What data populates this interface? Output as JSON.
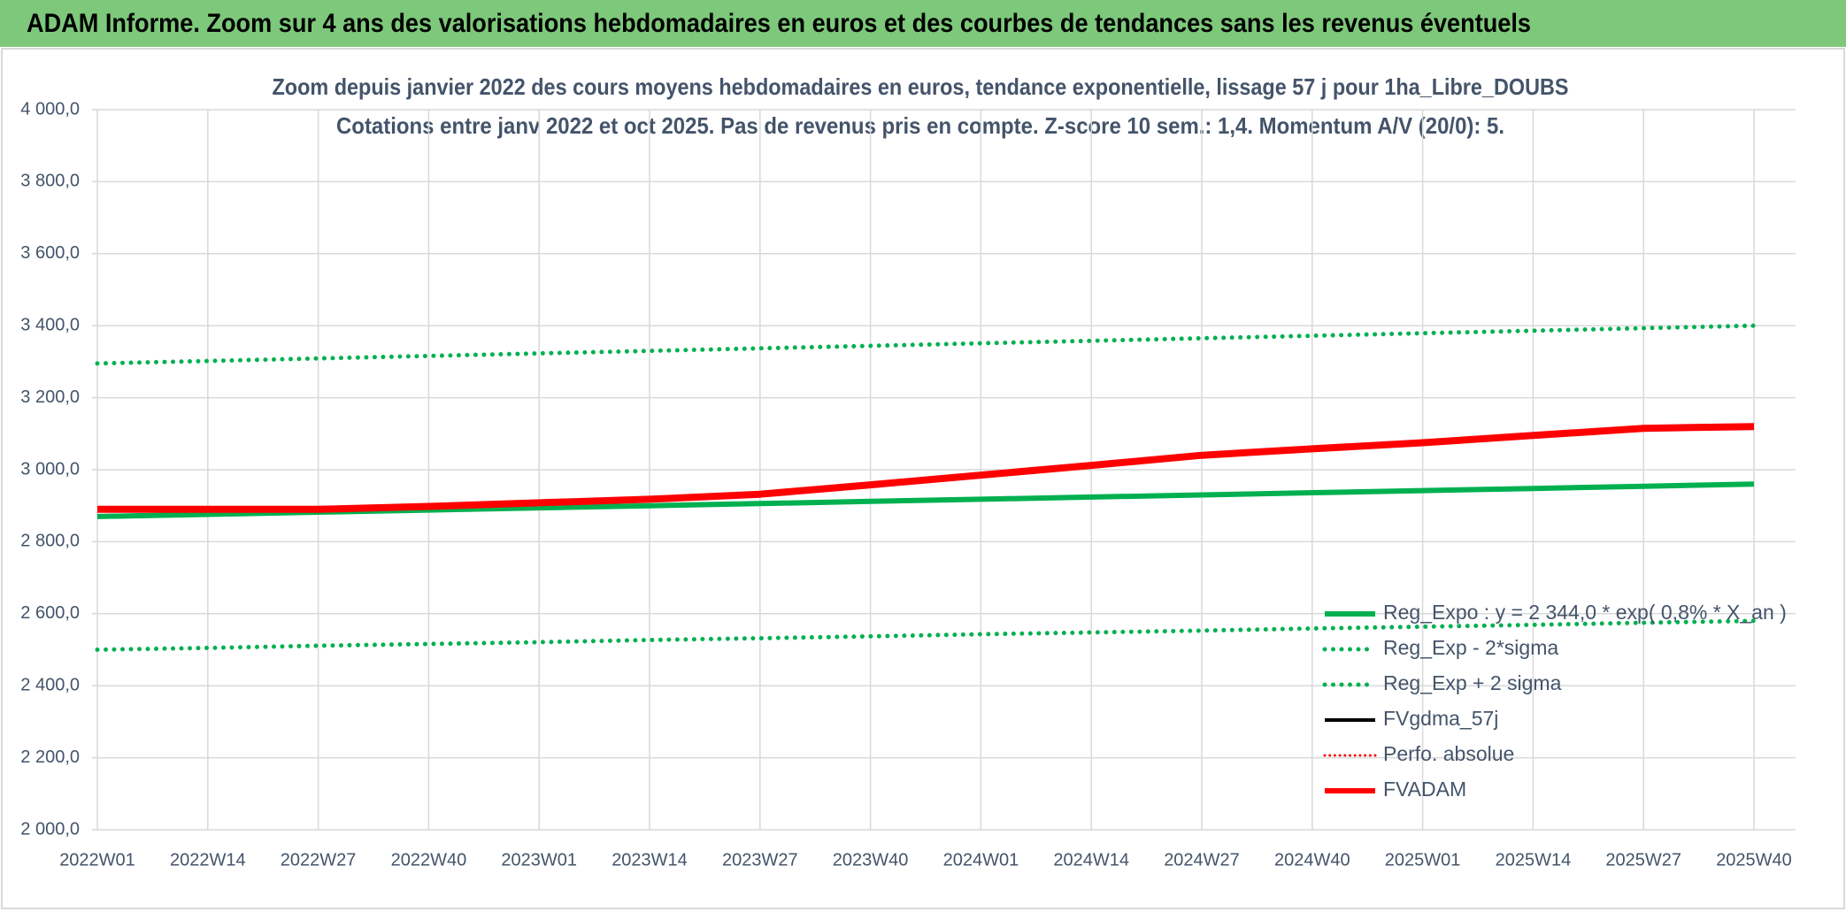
{
  "chart_data": {
    "type": "line",
    "title": "ADAM Informe. Zoom sur 4 ans des valorisations hebdomadaires en euros et des courbes de tendances sans les revenus éventuels",
    "subtitle": [
      "Zoom depuis janvier 2022 des cours moyens hebdomadaires en euros, tendance exponentielle, lissage 57 j pour 1ha_Libre_DOUBS",
      "Cotations entre janv 2022 et oct 2025. Pas de revenus pris en compte. Z-score 10 sem.: 1,4. Momentum A/V (20/0): 5."
    ],
    "categories": [
      "2022W01",
      "2022W14",
      "2022W27",
      "2022W40",
      "2023W01",
      "2023W14",
      "2023W27",
      "2023W40",
      "2024W01",
      "2024W14",
      "2024W27",
      "2024W40",
      "2025W01",
      "2025W14",
      "2025W27",
      "2025W40"
    ],
    "ylim": [
      2000,
      4000
    ],
    "yticks": [
      {
        "value": 2000,
        "label": "2 000,0"
      },
      {
        "value": 2200,
        "label": "2 200,0"
      },
      {
        "value": 2400,
        "label": "2 400,0"
      },
      {
        "value": 2600,
        "label": "2 600,0"
      },
      {
        "value": 2800,
        "label": "2 800,0"
      },
      {
        "value": 3000,
        "label": "3 000,0"
      },
      {
        "value": 3200,
        "label": "3 200,0"
      },
      {
        "value": 3400,
        "label": "3 400,0"
      },
      {
        "value": 3600,
        "label": "3 600,0"
      },
      {
        "value": 3800,
        "label": "3 800,0"
      },
      {
        "value": 4000,
        "label": "4 000,0"
      }
    ],
    "grid": true,
    "legend": "right",
    "series": [
      {
        "name": "Reg_Expo : y = 2 344,0 * exp( 0,8% * X_an )",
        "color": "#00b050",
        "dash": "solid",
        "width": 6,
        "values": [
          2870,
          2876,
          2882,
          2888,
          2894,
          2900,
          2906,
          2912,
          2918,
          2924,
          2930,
          2936,
          2942,
          2948,
          2954,
          2960
        ]
      },
      {
        "name": "Reg_Exp - 2*sigma",
        "color": "#00b050",
        "dash": "dotted",
        "width": 5,
        "values": [
          2500,
          2505,
          2511,
          2516,
          2521,
          2527,
          2532,
          2537,
          2543,
          2548,
          2553,
          2559,
          2564,
          2569,
          2575,
          2580
        ]
      },
      {
        "name": "Reg_Exp + 2 sigma",
        "color": "#00b050",
        "dash": "dotted",
        "width": 5,
        "values": [
          3295,
          3302,
          3309,
          3316,
          3323,
          3330,
          3337,
          3344,
          3351,
          3358,
          3365,
          3372,
          3379,
          3386,
          3393,
          3400
        ]
      },
      {
        "name": "FVgdma_57j",
        "color": "#000000",
        "dash": "solid",
        "width": 4,
        "values": [
          null,
          null,
          null,
          null,
          null,
          null,
          null,
          null,
          null,
          null,
          null,
          null,
          null,
          null,
          null,
          null
        ]
      },
      {
        "name": "Perfo. absolue",
        "color": "#ff0000",
        "dash": "dotted",
        "width": 3,
        "values": [
          null,
          null,
          null,
          null,
          null,
          null,
          null,
          null,
          null,
          null,
          null,
          null,
          null,
          null,
          null,
          null
        ]
      },
      {
        "name": "FVADAM",
        "color": "#ff0000",
        "dash": "solid",
        "width": 8,
        "values": [
          2890,
          2890,
          2890,
          2898,
          2908,
          2918,
          2932,
          2958,
          2985,
          3012,
          3040,
          3058,
          3075,
          3095,
          3115,
          3120
        ]
      }
    ]
  }
}
